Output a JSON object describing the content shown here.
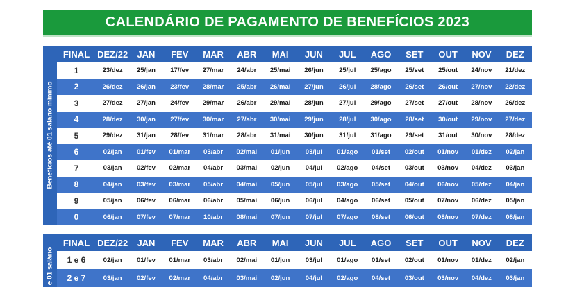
{
  "title": "CALENDÁRIO DE PAGAMENTO DE BENEFÍCIOS 2023",
  "table1": {
    "side_label": "Benefícios até 01 salário mínimo",
    "headers": [
      "FINAL",
      "DEZ/22",
      "JAN",
      "FEV",
      "MAR",
      "ABR",
      "MAI",
      "JUN",
      "JUL",
      "AGO",
      "SET",
      "OUT",
      "NOV",
      "DEZ"
    ],
    "rows": [
      [
        "1",
        "23/dez",
        "25/jan",
        "17/fev",
        "27/mar",
        "24/abr",
        "25/mai",
        "26/jun",
        "25/jul",
        "25/ago",
        "25/set",
        "25/out",
        "24/nov",
        "21/dez"
      ],
      [
        "2",
        "26/dez",
        "26/jan",
        "23/fev",
        "28/mar",
        "25/abr",
        "26/mai",
        "27/jun",
        "26/jul",
        "28/ago",
        "26/set",
        "26/out",
        "27/nov",
        "22/dez"
      ],
      [
        "3",
        "27/dez",
        "27/jan",
        "24/fev",
        "29/mar",
        "26/abr",
        "29/mai",
        "28/jun",
        "27/jul",
        "29/ago",
        "27/set",
        "27/out",
        "28/nov",
        "26/dez"
      ],
      [
        "4",
        "28/dez",
        "30/jan",
        "27/fev",
        "30/mar",
        "27/abr",
        "30/mai",
        "29/jun",
        "28/jul",
        "30/ago",
        "28/set",
        "30/out",
        "29/nov",
        "27/dez"
      ],
      [
        "5",
        "29/dez",
        "31/jan",
        "28/fev",
        "31/mar",
        "28/abr",
        "31/mai",
        "30/jun",
        "31/jul",
        "31/ago",
        "29/set",
        "31/out",
        "30/nov",
        "28/dez"
      ],
      [
        "6",
        "02/jan",
        "01/fev",
        "01/mar",
        "03/abr",
        "02/mai",
        "01/jun",
        "03/jul",
        "01/ago",
        "01/set",
        "02/out",
        "01/nov",
        "01/dez",
        "02/jan"
      ],
      [
        "7",
        "03/jan",
        "02/fev",
        "02/mar",
        "04/abr",
        "03/mai",
        "02/jun",
        "04/jul",
        "02/ago",
        "04/set",
        "03/out",
        "03/nov",
        "04/dez",
        "03/jan"
      ],
      [
        "8",
        "04/jan",
        "03/fev",
        "03/mar",
        "05/abr",
        "04/mai",
        "05/jun",
        "05/jul",
        "03/ago",
        "05/set",
        "04/out",
        "06/nov",
        "05/dez",
        "04/jan"
      ],
      [
        "9",
        "05/jan",
        "06/fev",
        "06/mar",
        "06/abr",
        "05/mai",
        "06/jun",
        "06/jul",
        "04/ago",
        "06/set",
        "05/out",
        "07/nov",
        "06/dez",
        "05/jan"
      ],
      [
        "0",
        "06/jan",
        "07/fev",
        "07/mar",
        "10/abr",
        "08/mai",
        "07/jun",
        "07/jul",
        "07/ago",
        "08/set",
        "06/out",
        "08/nov",
        "07/dez",
        "08/jan"
      ]
    ]
  },
  "table2": {
    "side_label": "e 01 salário",
    "headers": [
      "FINAL",
      "DEZ/22",
      "JAN",
      "FEV",
      "MAR",
      "ABR",
      "MAI",
      "JUN",
      "JUL",
      "AGO",
      "SET",
      "OUT",
      "NOV",
      "DEZ"
    ],
    "rows": [
      [
        "1 e 6",
        "02/jan",
        "01/fev",
        "01/mar",
        "03/abr",
        "02/mai",
        "01/jun",
        "03/jul",
        "01/ago",
        "01/set",
        "02/out",
        "01/nov",
        "01/dez",
        "02/jan"
      ],
      [
        "2 e 7",
        "03/jan",
        "02/fev",
        "02/mar",
        "04/abr",
        "03/mai",
        "02/jun",
        "04/jul",
        "02/ago",
        "04/set",
        "03/out",
        "03/nov",
        "04/dez",
        "03/jan"
      ]
    ]
  },
  "colors": {
    "title_green": "#1a9a3c",
    "header_blue": "#2e65b8",
    "stripe_blue": "#3f74c9"
  }
}
